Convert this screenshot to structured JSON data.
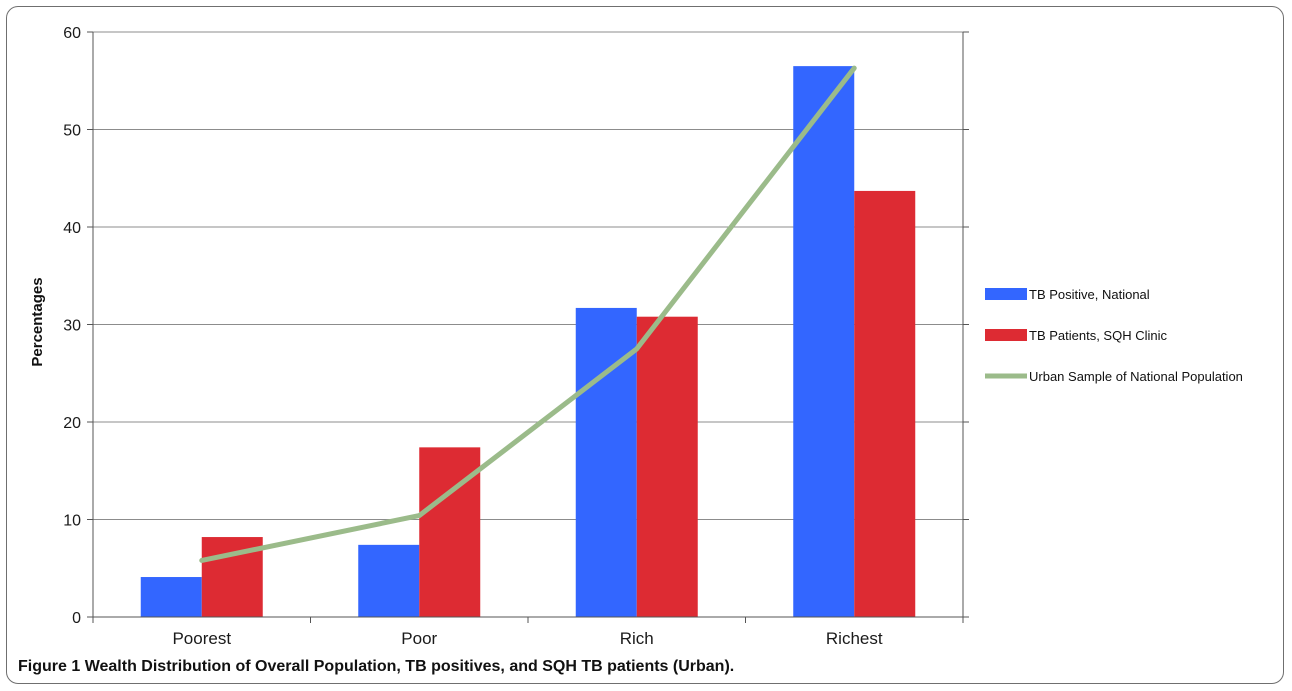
{
  "caption": {
    "label": "Figure 1",
    "text": "Wealth Distribution of Overall Population, TB positives, and SQH TB patients (Urban)."
  },
  "chart_data": {
    "type": "bar",
    "title": "",
    "xlabel": "",
    "ylabel": "Percentages",
    "ylim": [
      0,
      60
    ],
    "yticks": [
      0,
      10,
      20,
      30,
      40,
      50,
      60
    ],
    "grid": true,
    "legend_position": "right",
    "categories": [
      "Poorest",
      "Poor",
      "Rich",
      "Richest"
    ],
    "series": [
      {
        "name": "TB Positive, National",
        "kind": "bar",
        "color": "#3366ff",
        "values": [
          4.1,
          7.4,
          31.7,
          56.5
        ]
      },
      {
        "name": "TB Patients, SQH Clinic",
        "kind": "bar",
        "color": "#dd2b33",
        "values": [
          8.2,
          17.4,
          30.8,
          43.7
        ]
      },
      {
        "name": "Urban Sample of National Population",
        "kind": "line",
        "color": "#9bbb8a",
        "values": [
          5.8,
          10.4,
          27.5,
          56.3
        ]
      }
    ]
  }
}
